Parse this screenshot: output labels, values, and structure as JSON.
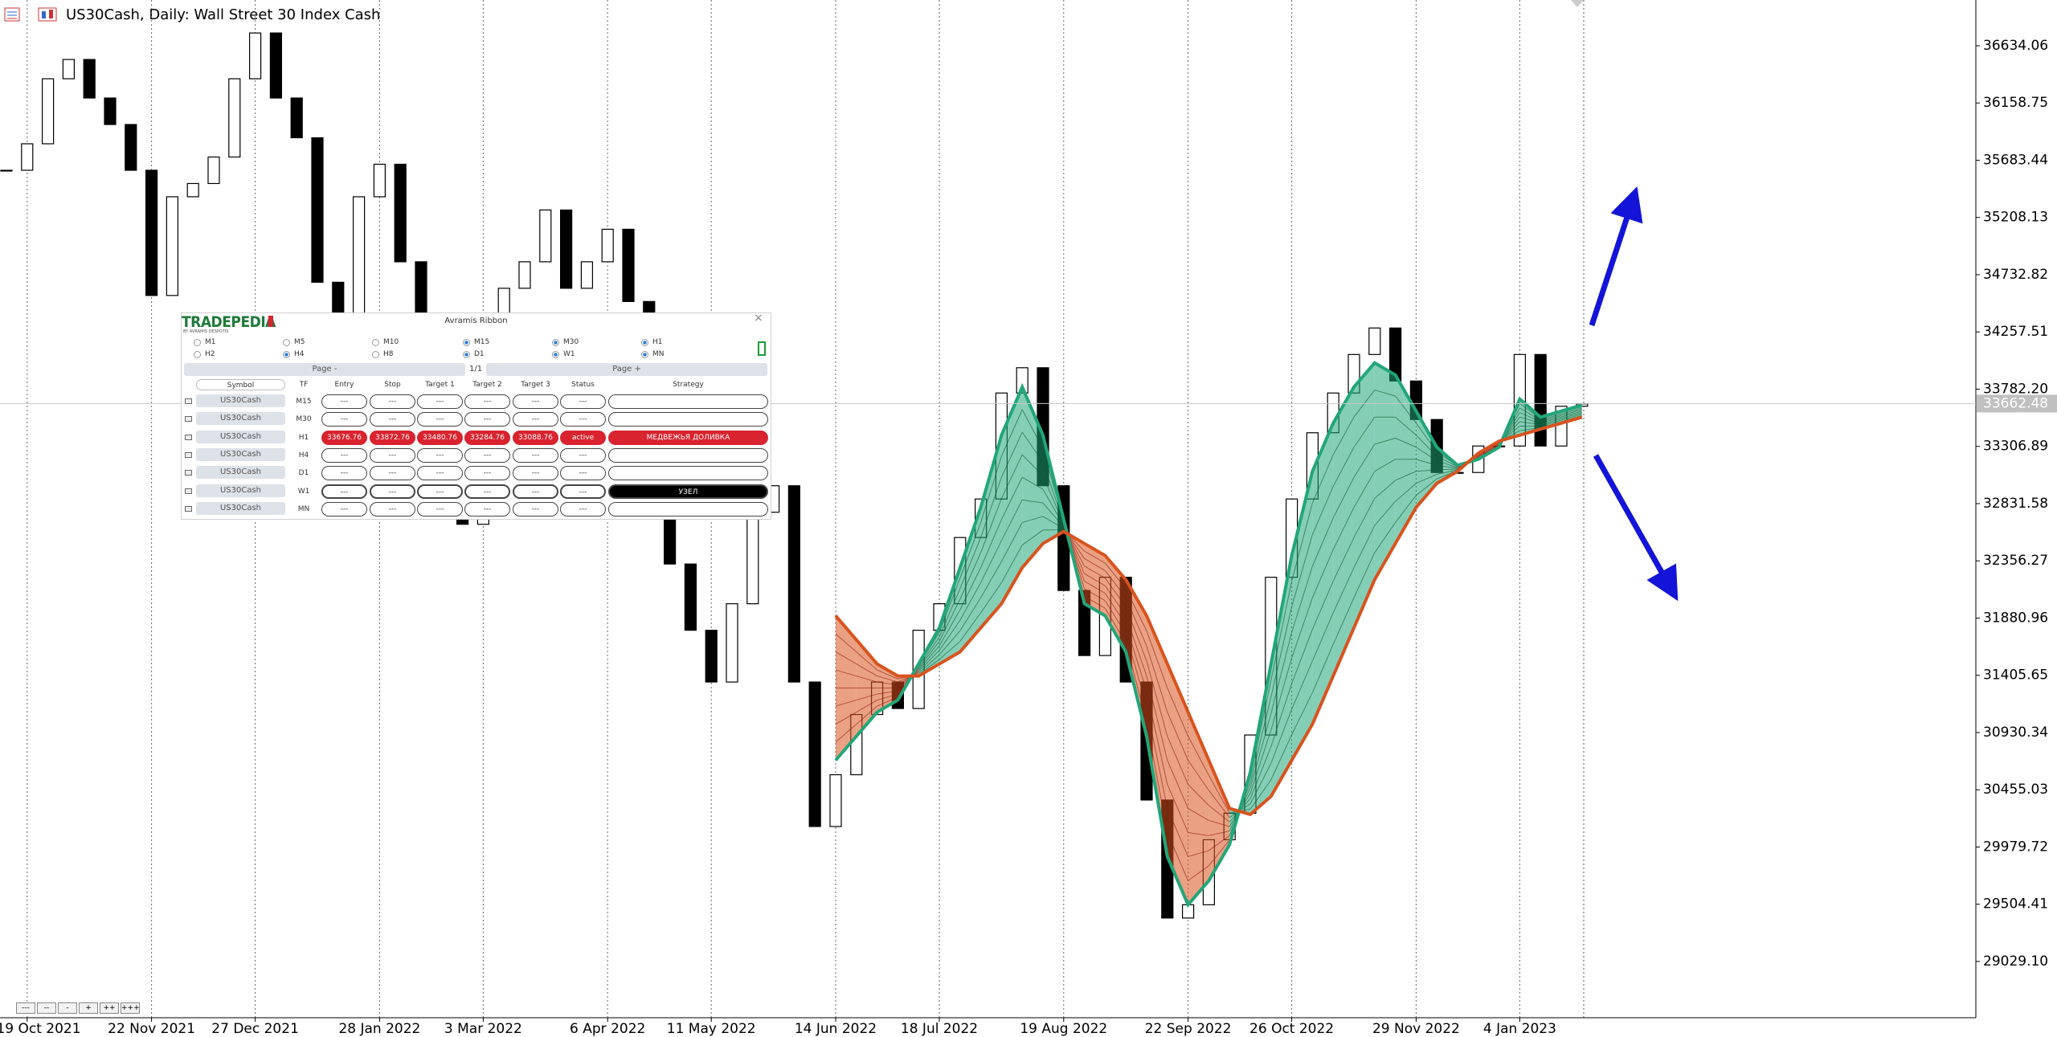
{
  "header": {
    "title": "US30Cash, Daily:  Wall Street 30 Index Cash"
  },
  "chart_data": {
    "type": "candlestick",
    "categories": [
      null,
      "19 Oct 2021",
      null,
      null,
      null,
      null,
      null,
      "22 Nov 2021",
      null,
      null,
      null,
      null,
      "27 Dec 2021",
      null,
      null,
      null,
      null,
      null,
      "28 Jan 2022",
      null,
      null,
      null,
      null,
      "3 Mar 2022",
      null,
      null,
      null,
      null,
      null,
      "6 Apr 2022",
      null,
      null,
      null,
      null,
      "11 May 2022",
      null,
      null,
      null,
      null,
      null,
      "14 Jun 2022",
      null,
      null,
      null,
      null,
      "18 Jul 2022",
      null,
      null,
      null,
      null,
      null,
      "19 Aug 2022",
      null,
      null,
      null,
      null,
      null,
      "22 Sep 2022",
      null,
      null,
      null,
      null,
      "26 Oct 2022",
      null,
      null,
      null,
      null,
      null,
      "29 Nov 2022",
      null,
      null,
      null,
      null,
      "4 Jan 2023",
      null,
      null,
      null
    ],
    "values": [
      35600,
      35820,
      36360,
      36520,
      36200,
      35980,
      35600,
      34560,
      35380,
      35490,
      35710,
      36360,
      36740,
      36200,
      35870,
      34670,
      34290,
      35380,
      35650,
      34840,
      33960,
      33200,
      32660,
      33420,
      34620,
      34840,
      35270,
      34620,
      34840,
      35110,
      34510,
      33420,
      32330,
      31780,
      31350,
      32000,
      32760,
      32980,
      31350,
      30150,
      30580,
      31080,
      31350,
      31130,
      31780,
      32000,
      32550,
      32870,
      33750,
      33960,
      32980,
      32110,
      31570,
      32220,
      31350,
      30370,
      29390,
      29500,
      30040,
      30260,
      30910,
      32220,
      32870,
      33420,
      33750,
      34070,
      34290,
      33850,
      33530,
      33090,
      33090,
      33310,
      33310,
      34070,
      33310,
      33640,
      33660
    ],
    "up_color": "#ffffff",
    "down_color": "#000000",
    "ribbon": {
      "series": [
        {
          "color": "#21a67a",
          "values": [
            null,
            null,
            null,
            null,
            null,
            null,
            null,
            null,
            null,
            null,
            null,
            null,
            null,
            null,
            null,
            null,
            null,
            null,
            null,
            null,
            null,
            null,
            null,
            null,
            null,
            null,
            null,
            null,
            null,
            null,
            null,
            null,
            null,
            null,
            null,
            null,
            null,
            null,
            null,
            null,
            30700,
            30900,
            31100,
            31200,
            31500,
            31800,
            32300,
            32800,
            33400,
            33800,
            33400,
            32700,
            32000,
            31900,
            31600,
            30900,
            29900,
            29500,
            29700,
            30000,
            30600,
            31500,
            32400,
            33100,
            33500,
            33800,
            34000,
            33900,
            33600,
            33300,
            33150,
            33200,
            33300,
            33700,
            33550,
            33600,
            33650
          ]
        },
        {
          "color": "#d9531e",
          "values": [
            null,
            null,
            null,
            null,
            null,
            null,
            null,
            null,
            null,
            null,
            null,
            null,
            null,
            null,
            null,
            null,
            null,
            null,
            null,
            null,
            null,
            null,
            null,
            null,
            null,
            null,
            null,
            null,
            null,
            null,
            null,
            null,
            null,
            null,
            null,
            null,
            null,
            null,
            null,
            null,
            31900,
            31700,
            31500,
            31400,
            31400,
            31500,
            31600,
            31800,
            32000,
            32300,
            32500,
            32600,
            32500,
            32400,
            32200,
            31900,
            31500,
            31100,
            30700,
            30300,
            30250,
            30400,
            30700,
            31000,
            31400,
            31800,
            32200,
            32500,
            32800,
            33000,
            33100,
            33250,
            33350,
            33400,
            33450,
            33500,
            33550
          ]
        }
      ]
    },
    "ylim": [
      28562,
      37014
    ],
    "yticks": [
      36634.06,
      36158.75,
      35683.44,
      35208.13,
      34732.82,
      34257.51,
      {
        "value": 33782.2,
        "label": "33782.20"
      },
      33306.89,
      32831.58,
      32356.27,
      31880.96,
      31405.65,
      30930.34,
      30455.03,
      29979.72,
      29504.41,
      {
        "value": 29029.1,
        "label": "29029.10"
      }
    ],
    "last_price": 33662.48,
    "grid": true
  },
  "panel": {
    "logo": "TRADEPEDIA",
    "logo_sub": "BY AVRAMIS DESPOTIS",
    "title": "Avramis Ribbon",
    "close": "×",
    "timeframes": [
      {
        "label": "M1",
        "checked": false
      },
      {
        "label": "M5",
        "checked": false
      },
      {
        "label": "M10",
        "checked": false
      },
      {
        "label": "M15",
        "checked": true
      },
      {
        "label": "M30",
        "checked": true
      },
      {
        "label": "H1",
        "checked": true
      },
      {
        "label": "H2",
        "checked": false
      },
      {
        "label": "H4",
        "checked": true
      },
      {
        "label": "H8",
        "checked": false
      },
      {
        "label": "D1",
        "checked": true
      },
      {
        "label": "W1",
        "checked": true
      },
      {
        "label": "MN",
        "checked": true
      }
    ],
    "page_prev": "Page -",
    "page_info": "1/1",
    "page_next": "Page +",
    "columns": [
      "Symbol",
      "TF",
      "Entry",
      "Stop",
      "Target 1",
      "Target 2",
      "Target 3",
      "Status",
      "Strategy"
    ],
    "rows": [
      {
        "cells": [
          "US30Cash",
          "M15",
          "---",
          "---",
          "---",
          "---",
          "---",
          "---",
          null
        ]
      },
      {
        "cells": [
          "US30Cash",
          "M30",
          "---",
          "---",
          "---",
          "---",
          "---",
          "---",
          null
        ]
      },
      {
        "cells": [
          "US30Cash",
          "H1",
          "33676.76",
          "33872.76",
          "33480.76",
          "33284.76",
          "33088.76",
          "active",
          "МЕДВЕЖЬЯ ДОЛИВКА"
        ],
        "fill": "#d9232e"
      },
      {
        "cells": [
          "US30Cash",
          "H4",
          "---",
          "---",
          "---",
          "---",
          "---",
          "---",
          null
        ]
      },
      {
        "cells": [
          "US30Cash",
          "D1",
          "---",
          "---",
          "---",
          "---",
          "---",
          "---",
          null
        ]
      },
      {
        "cells": [
          "US30Cash",
          "W1",
          "---",
          "---",
          "---",
          "---",
          "---",
          "---",
          "УЗЕЛ"
        ],
        "strategy_fill": "#000000"
      },
      {
        "cells": [
          "US30Cash",
          "MN",
          "---",
          "---",
          "---",
          "---",
          "---",
          "---",
          null
        ]
      }
    ]
  },
  "zoom_buttons": [
    "---",
    "--",
    "-",
    "+",
    "++",
    "+++"
  ]
}
